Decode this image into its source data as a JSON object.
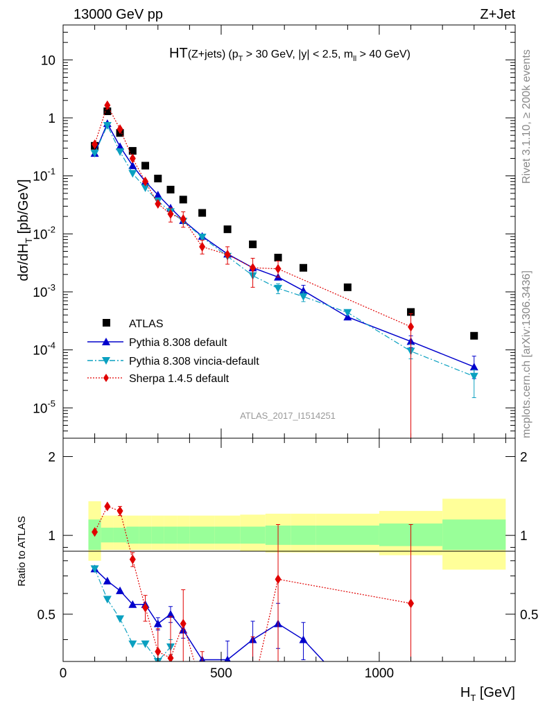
{
  "header": {
    "left": "13000 GeV pp",
    "right": "Z+Jet",
    "side_top": "Rivet 3.1.10, ≥ 200k events",
    "side_bottom": "mcplots.cern.ch [arXiv:1306.3436]"
  },
  "chart_data": {
    "type": "scatter",
    "title_main": "HT",
    "title_sub": "(Z+jets)",
    "title_rest": "(p",
    "title_rest_sub": "T",
    "title_rest2": " > 30 GeV, |y| < 2.5, m",
    "title_rest2_sub": "ll",
    "title_rest3": " > 40 GeV)",
    "analysis_label": "ATLAS_2017_I1514251",
    "xlabel": "H",
    "xlabel_sub": "T",
    "xlabel_unit": " [GeV]",
    "ylabel": "dσ/dH",
    "ylabel_sub": "T",
    "ylabel_unit": " [pb/GeV]",
    "ratio_ylabel": "Ratio to ATLAS",
    "xlim": [
      0,
      1430
    ],
    "ylim": [
      3e-06,
      40
    ],
    "ratio_ylim": [
      0.33,
      2.35
    ],
    "yscale": "log",
    "x_ticks": [
      "0",
      "500",
      "1000"
    ],
    "y_ticks": [
      "10^-5",
      "10^-4",
      "10^-3",
      "10^-2",
      "10^-1",
      "1",
      "10"
    ],
    "ratio_ticks": [
      "0.5",
      "1",
      "2"
    ],
    "legend_position": "lower-left",
    "bins": [
      [
        80,
        120
      ],
      [
        120,
        160
      ],
      [
        160,
        200
      ],
      [
        200,
        240
      ],
      [
        240,
        280
      ],
      [
        280,
        320
      ],
      [
        320,
        360
      ],
      [
        360,
        400
      ],
      [
        400,
        480
      ],
      [
        480,
        560
      ],
      [
        560,
        640
      ],
      [
        640,
        720
      ],
      [
        720,
        800
      ],
      [
        800,
        1000
      ],
      [
        1000,
        1200
      ],
      [
        1200,
        1400
      ]
    ],
    "band_inner": [
      [
        0.88,
        1.15
      ],
      [
        0.94,
        1.07
      ],
      [
        0.94,
        1.07
      ],
      [
        0.93,
        1.08
      ],
      [
        0.93,
        1.08
      ],
      [
        0.93,
        1.08
      ],
      [
        0.93,
        1.08
      ],
      [
        0.93,
        1.08
      ],
      [
        0.93,
        1.08
      ],
      [
        0.93,
        1.08
      ],
      [
        0.93,
        1.08
      ],
      [
        0.92,
        1.09
      ],
      [
        0.92,
        1.09
      ],
      [
        0.92,
        1.09
      ],
      [
        0.91,
        1.11
      ],
      [
        0.88,
        1.15
      ]
    ],
    "band_outer": [
      [
        0.8,
        1.35
      ],
      [
        0.88,
        1.19
      ],
      [
        0.88,
        1.19
      ],
      [
        0.88,
        1.19
      ],
      [
        0.88,
        1.19
      ],
      [
        0.88,
        1.19
      ],
      [
        0.88,
        1.19
      ],
      [
        0.88,
        1.19
      ],
      [
        0.88,
        1.19
      ],
      [
        0.88,
        1.19
      ],
      [
        0.87,
        1.2
      ],
      [
        0.86,
        1.21
      ],
      [
        0.86,
        1.21
      ],
      [
        0.86,
        1.21
      ],
      [
        0.84,
        1.24
      ],
      [
        0.74,
        1.38
      ]
    ],
    "series": [
      {
        "name": "ATLAS",
        "color": "#000000",
        "marker": "square",
        "x": [
          100,
          140,
          180,
          220,
          260,
          300,
          340,
          380,
          440,
          520,
          600,
          680,
          760,
          900,
          1100,
          1300
        ],
        "y": [
          0.33,
          1.3,
          0.55,
          0.27,
          0.15,
          0.09,
          0.058,
          0.039,
          0.023,
          0.012,
          0.0066,
          0.0039,
          0.0026,
          0.0012,
          0.00045,
          0.000175
        ]
      },
      {
        "name": "Pythia 8.308 default",
        "color": "#0000cc",
        "marker": "triangle-up",
        "line": "solid",
        "x": [
          100,
          140,
          180,
          220,
          260,
          300,
          340,
          380,
          440,
          520,
          600,
          680,
          760,
          900,
          1100,
          1300
        ],
        "y": [
          0.245,
          0.8,
          0.32,
          0.15,
          0.08,
          0.047,
          0.028,
          0.017,
          0.0091,
          0.0045,
          0.0026,
          0.0018,
          0.00105,
          0.00037,
          0.00014,
          5.1e-05
        ],
        "yerr_hi": [
          null,
          null,
          null,
          null,
          null,
          null,
          null,
          null,
          null,
          null,
          null,
          null,
          0.0013,
          null,
          0.000175,
          7.8e-05
        ],
        "yerr_lo": [
          null,
          null,
          null,
          null,
          null,
          null,
          null,
          null,
          null,
          null,
          null,
          null,
          0.00085,
          null,
          0.00011,
          3.2e-05
        ]
      },
      {
        "name": "Pythia 8.308 vincia-default",
        "color": "#0aa0c0",
        "marker": "triangle-down",
        "line": "dash-dot",
        "x": [
          100,
          140,
          180,
          220,
          260,
          300,
          340,
          380,
          440,
          520,
          600,
          680,
          760,
          900,
          1100,
          1300
        ],
        "y": [
          0.245,
          0.74,
          0.26,
          0.11,
          0.062,
          0.037,
          0.024,
          0.0165,
          0.0088,
          0.0041,
          0.0019,
          0.00115,
          0.00083,
          0.00044,
          9.5e-05,
          3.5e-05
        ],
        "yerr_hi": [
          null,
          null,
          null,
          null,
          null,
          null,
          null,
          null,
          null,
          null,
          null,
          0.00138,
          0.001,
          null,
          0.000125,
          4.5e-05
        ],
        "yerr_lo": [
          null,
          null,
          null,
          null,
          null,
          null,
          null,
          null,
          null,
          null,
          null,
          0.00093,
          0.00068,
          null,
          7e-05,
          1.5e-05
        ]
      },
      {
        "name": "Sherpa 1.4.5 default",
        "color": "#e00000",
        "marker": "diamond",
        "line": "dotted",
        "x": [
          100,
          140,
          180,
          220,
          260,
          300,
          340,
          380,
          440,
          520,
          600,
          680,
          1100
        ],
        "y": [
          0.35,
          1.65,
          0.64,
          0.2,
          0.08,
          0.033,
          0.022,
          0.018,
          0.006,
          0.0044,
          0.0026,
          0.0025,
          0.00025
        ],
        "yerr_hi": [
          null,
          null,
          null,
          null,
          null,
          null,
          0.028,
          0.024,
          0.0078,
          0.006,
          0.0038,
          0.0034,
          0.00042
        ],
        "yerr_lo": [
          null,
          null,
          null,
          null,
          null,
          null,
          0.016,
          0.013,
          0.0045,
          0.003,
          0.0012,
          0.0018,
          1e-07
        ]
      }
    ],
    "ratio_series": [
      {
        "name": "Pythia 8.308 default",
        "color": "#0000cc",
        "x": [
          100,
          140,
          180,
          220,
          260,
          300,
          340,
          380,
          440,
          520,
          600,
          680,
          760,
          840
        ],
        "y": [
          0.745,
          0.67,
          0.615,
          0.545,
          0.545,
          0.46,
          0.5,
          0.435,
          0.335,
          0.335,
          0.4,
          0.46,
          0.4,
          0.315
        ],
        "yerr": [
          null,
          null,
          null,
          null,
          null,
          0.025,
          0.035,
          0.03,
          null,
          0.06,
          0.07,
          0.09,
          0.065,
          null
        ]
      },
      {
        "name": "Pythia 8.308 vincia-default",
        "color": "#0aa0c0",
        "x": [
          100,
          140,
          180,
          220,
          260,
          300,
          340
        ],
        "y": [
          0.745,
          0.57,
          0.48,
          0.385,
          0.385,
          0.33,
          0.375
        ],
        "yerr": [
          null,
          null,
          null,
          null,
          null,
          null,
          0.025
        ]
      },
      {
        "name": "Sherpa 1.4.5 default",
        "color": "#e00000",
        "x": [
          100,
          140,
          180,
          220,
          260,
          300,
          340,
          380,
          440,
          520,
          600,
          680,
          1100
        ],
        "y": [
          1.03,
          1.29,
          1.24,
          0.81,
          0.53,
          0.36,
          0.34,
          0.46,
          0.26,
          0.2,
          0.26,
          0.68,
          0.55
        ],
        "yerr": [
          null,
          null,
          0.05,
          0.05,
          0.06,
          0.08,
          0.15,
          0.16,
          0.1,
          0.1,
          0.15,
          0.42,
          0.55
        ]
      }
    ]
  }
}
